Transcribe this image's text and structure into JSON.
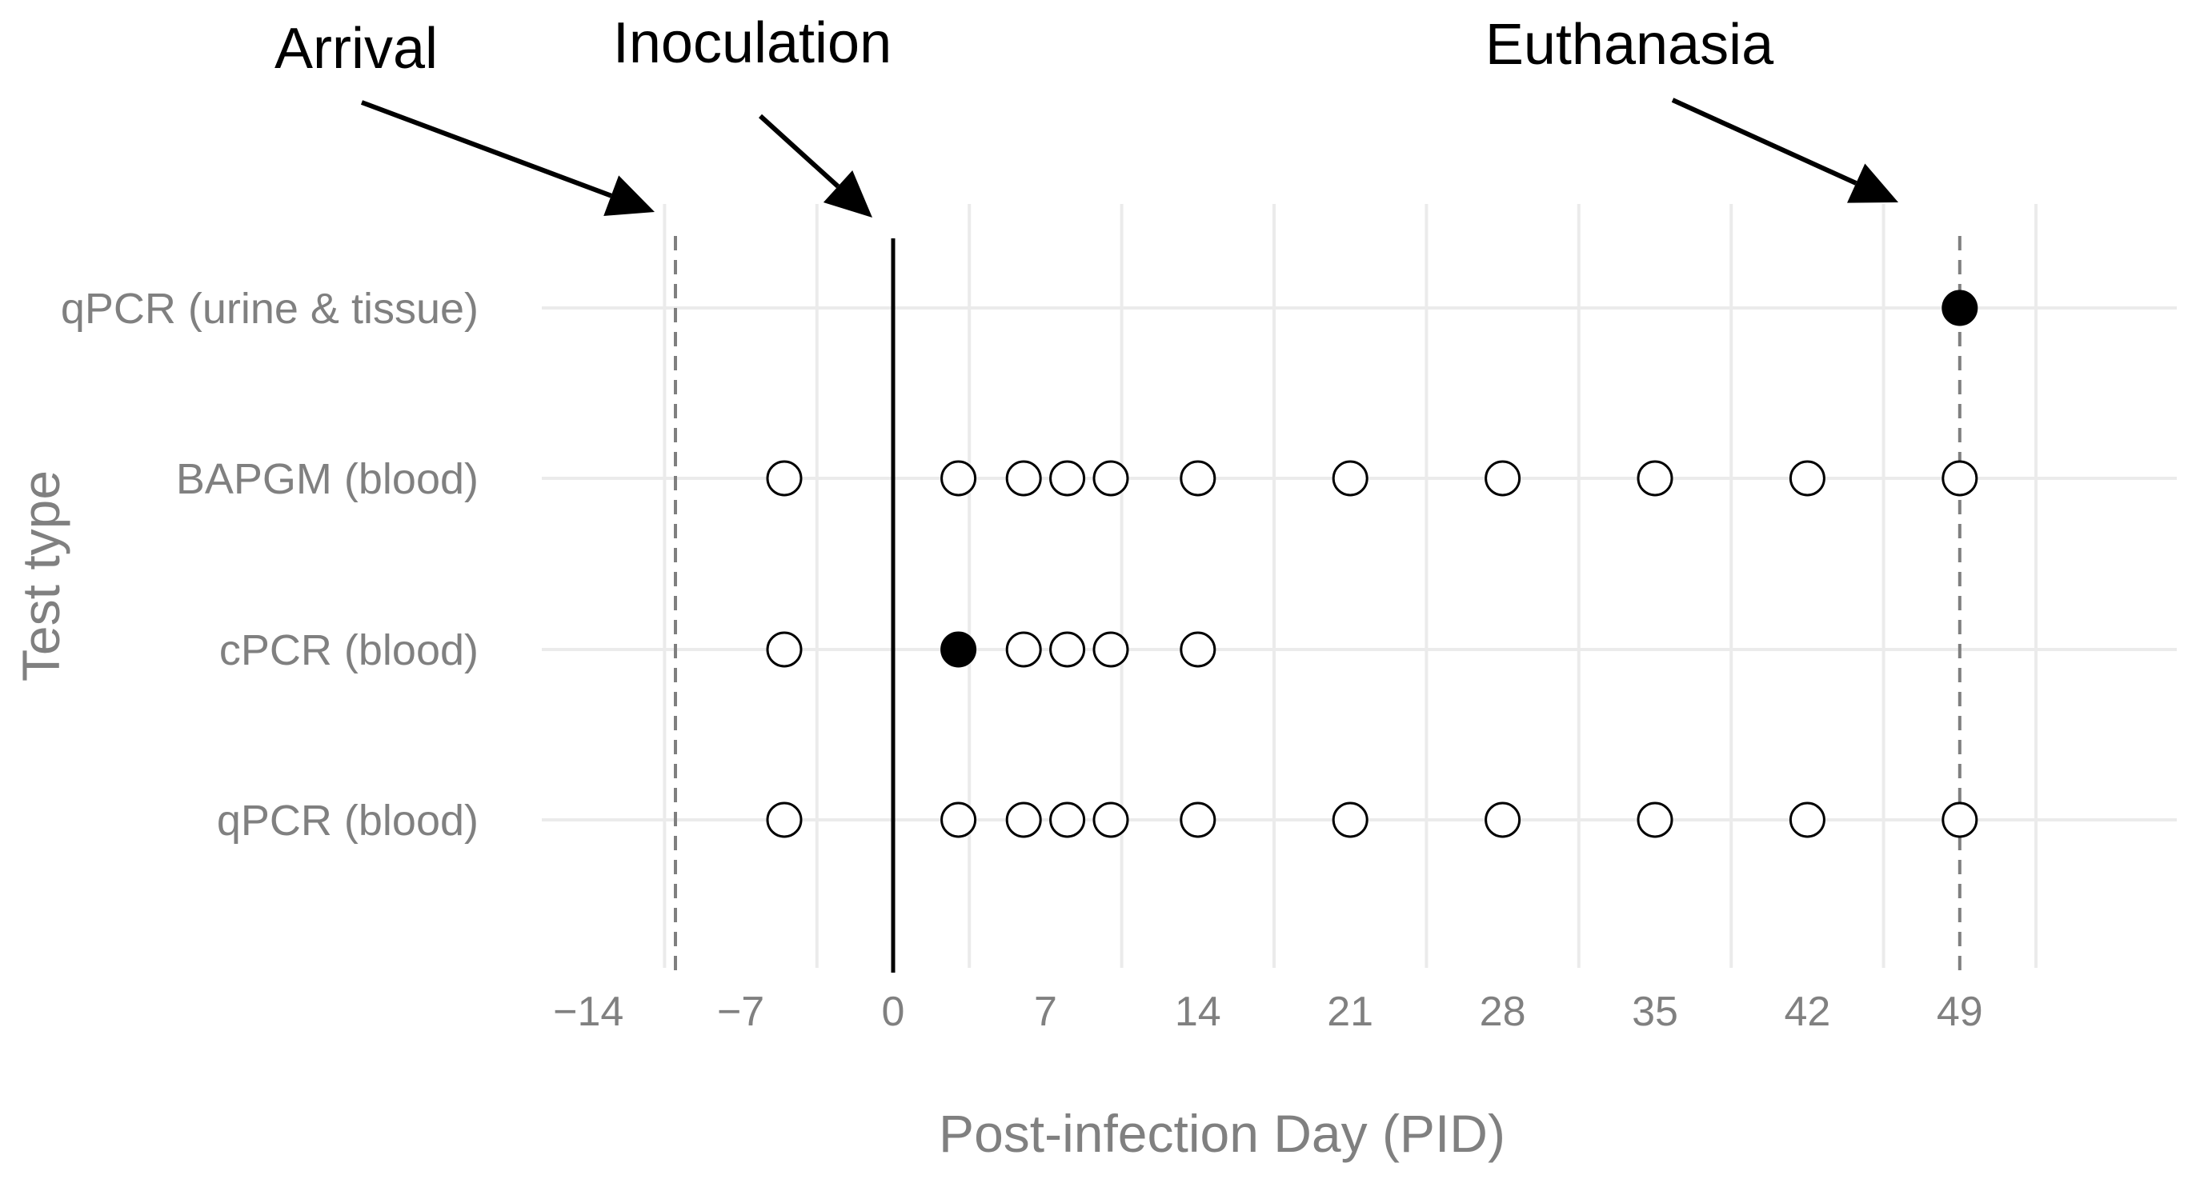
{
  "chart_data": {
    "type": "scatter",
    "xlabel": "Post-infection Day (PID)",
    "ylabel": "Test type",
    "xlim": [
      -16,
      57
    ],
    "x_ticks": [
      -14,
      -7,
      0,
      7,
      14,
      21,
      28,
      35,
      42,
      49
    ],
    "x_tick_labels": [
      "−14",
      "−7",
      "0",
      "7",
      "14",
      "21",
      "28",
      "35",
      "42",
      "49"
    ],
    "categories": [
      "qPCR (blood)",
      "cPCR (blood)",
      "BAPGM (blood)",
      "qPCR (urine & tissue)"
    ],
    "grid": true,
    "series": [
      {
        "name": "qPCR (blood)",
        "points": [
          {
            "x": -5,
            "positive": false
          },
          {
            "x": 3,
            "positive": false
          },
          {
            "x": 6,
            "positive": false
          },
          {
            "x": 8,
            "positive": false
          },
          {
            "x": 10,
            "positive": false
          },
          {
            "x": 14,
            "positive": false
          },
          {
            "x": 21,
            "positive": false
          },
          {
            "x": 28,
            "positive": false
          },
          {
            "x": 35,
            "positive": false
          },
          {
            "x": 42,
            "positive": false
          },
          {
            "x": 49,
            "positive": false
          }
        ]
      },
      {
        "name": "cPCR (blood)",
        "points": [
          {
            "x": -5,
            "positive": false
          },
          {
            "x": 3,
            "positive": true
          },
          {
            "x": 6,
            "positive": false
          },
          {
            "x": 8,
            "positive": false
          },
          {
            "x": 10,
            "positive": false
          },
          {
            "x": 14,
            "positive": false
          }
        ]
      },
      {
        "name": "BAPGM (blood)",
        "points": [
          {
            "x": -5,
            "positive": false
          },
          {
            "x": 3,
            "positive": false
          },
          {
            "x": 6,
            "positive": false
          },
          {
            "x": 8,
            "positive": false
          },
          {
            "x": 10,
            "positive": false
          },
          {
            "x": 14,
            "positive": false
          },
          {
            "x": 21,
            "positive": false
          },
          {
            "x": 28,
            "positive": false
          },
          {
            "x": 35,
            "positive": false
          },
          {
            "x": 42,
            "positive": false
          },
          {
            "x": 49,
            "positive": false
          }
        ]
      },
      {
        "name": "qPCR (urine & tissue)",
        "points": [
          {
            "x": 49,
            "positive": true
          }
        ]
      }
    ],
    "reference_lines": [
      {
        "x": -10,
        "style": "dashed",
        "label": "Arrival"
      },
      {
        "x": 0,
        "style": "solid",
        "label": "Inoculation"
      },
      {
        "x": 49,
        "style": "dashed",
        "label": "Euthanasia"
      }
    ]
  },
  "colors": {
    "grid": "#ebebeb",
    "text_gray": "#808080",
    "ref_dashed": "#7f7f7f",
    "ref_solid": "#000000",
    "marker": "#000000"
  }
}
